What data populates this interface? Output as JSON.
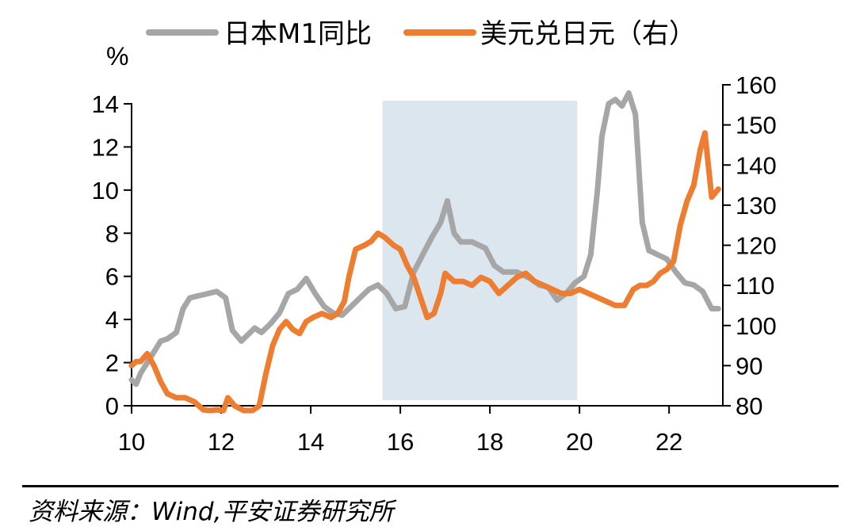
{
  "chart_data": {
    "type": "line",
    "legend": {
      "placement": "top"
    },
    "y_unit": "%",
    "x_axis": {
      "ticks": [
        "10",
        "12",
        "14",
        "16",
        "18",
        "20",
        "22"
      ],
      "range": [
        2010,
        2023.2
      ]
    },
    "y_left": {
      "ticks": [
        "0",
        "2",
        "4",
        "6",
        "8",
        "10",
        "12",
        "14"
      ],
      "range": [
        0,
        14
      ]
    },
    "y_right": {
      "ticks": [
        "80",
        "90",
        "100",
        "110",
        "120",
        "130",
        "140",
        "150",
        "160"
      ],
      "range": [
        80,
        160
      ]
    },
    "shaded_region": {
      "x_start": 2015.6,
      "x_end": 2019.95,
      "color": "#dce6ef"
    },
    "series": [
      {
        "name": "日本M1同比",
        "axis": "left",
        "color": "#a6a6a6",
        "x": [
          2010.0,
          2010.1,
          2010.2,
          2010.35,
          2010.5,
          2010.65,
          2010.8,
          2011.0,
          2011.15,
          2011.3,
          2011.5,
          2011.7,
          2011.9,
          2012.1,
          2012.25,
          2012.45,
          2012.6,
          2012.75,
          2012.9,
          2013.1,
          2013.3,
          2013.5,
          2013.7,
          2013.9,
          2014.1,
          2014.3,
          2014.5,
          2014.7,
          2014.9,
          2015.1,
          2015.3,
          2015.5,
          2015.7,
          2015.9,
          2016.1,
          2016.3,
          2016.5,
          2016.7,
          2016.9,
          2017.05,
          2017.2,
          2017.35,
          2017.6,
          2017.9,
          2018.1,
          2018.3,
          2018.6,
          2018.9,
          2019.1,
          2019.3,
          2019.5,
          2019.7,
          2019.9,
          2020.1,
          2020.25,
          2020.4,
          2020.5,
          2020.65,
          2020.8,
          2020.95,
          2021.1,
          2021.25,
          2021.4,
          2021.55,
          2021.75,
          2021.95,
          2022.15,
          2022.35,
          2022.55,
          2022.75,
          2022.95,
          2023.1
        ],
        "values": [
          1.2,
          1.0,
          1.5,
          2.0,
          2.5,
          3.0,
          3.1,
          3.4,
          4.5,
          5.0,
          5.1,
          5.2,
          5.3,
          5.0,
          3.5,
          3.0,
          3.3,
          3.6,
          3.4,
          3.8,
          4.3,
          5.2,
          5.4,
          5.9,
          5.2,
          4.6,
          4.3,
          4.2,
          4.6,
          5.0,
          5.4,
          5.6,
          5.2,
          4.5,
          4.6,
          6.2,
          7.0,
          7.8,
          8.5,
          9.5,
          8.0,
          7.6,
          7.6,
          7.3,
          6.5,
          6.2,
          6.2,
          5.9,
          5.6,
          5.5,
          4.9,
          5.2,
          5.7,
          6.0,
          7.0,
          10.0,
          12.5,
          14.0,
          14.2,
          13.9,
          14.5,
          13.5,
          8.5,
          7.2,
          7.0,
          6.8,
          6.2,
          5.7,
          5.6,
          5.3,
          4.5,
          4.5
        ]
      },
      {
        "name": "美元兑日元（右）",
        "axis": "right",
        "color": "#ed7d31",
        "x": [
          2010.0,
          2010.1,
          2010.2,
          2010.35,
          2010.5,
          2010.65,
          2010.8,
          2011.0,
          2011.2,
          2011.4,
          2011.6,
          2011.75,
          2011.9,
          2012.05,
          2012.15,
          2012.3,
          2012.5,
          2012.7,
          2012.85,
          2013.0,
          2013.15,
          2013.3,
          2013.45,
          2013.6,
          2013.75,
          2013.9,
          2014.05,
          2014.25,
          2014.45,
          2014.6,
          2014.75,
          2014.85,
          2015.0,
          2015.2,
          2015.35,
          2015.5,
          2015.65,
          2015.85,
          2016.0,
          2016.15,
          2016.3,
          2016.45,
          2016.6,
          2016.75,
          2016.9,
          2017.0,
          2017.2,
          2017.4,
          2017.6,
          2017.8,
          2018.0,
          2018.2,
          2018.4,
          2018.6,
          2018.8,
          2019.0,
          2019.2,
          2019.4,
          2019.6,
          2019.8,
          2020.0,
          2020.2,
          2020.4,
          2020.6,
          2020.8,
          2021.0,
          2021.2,
          2021.35,
          2021.5,
          2021.65,
          2021.8,
          2021.95,
          2022.1,
          2022.25,
          2022.4,
          2022.55,
          2022.7,
          2022.8,
          2022.95,
          2023.1
        ],
        "values": [
          90,
          91,
          91,
          93,
          90,
          86,
          83,
          82,
          82,
          81,
          79,
          78,
          79,
          78,
          82,
          80,
          78,
          78,
          80,
          88,
          95,
          99,
          101,
          99,
          98,
          101,
          102,
          103,
          102,
          103,
          106,
          112,
          119,
          120,
          121,
          123,
          122,
          120,
          119,
          115,
          112,
          107,
          102,
          103,
          108,
          113,
          111,
          111,
          110,
          112,
          111,
          108,
          110,
          112,
          113,
          111,
          110,
          109,
          108,
          108,
          109,
          108,
          107,
          106,
          105,
          105,
          109,
          110,
          110,
          111,
          113,
          114,
          116,
          125,
          131,
          135,
          144,
          148,
          132,
          134
        ]
      }
    ]
  },
  "source_text": "资料来源：Wind,平安证券研究所"
}
